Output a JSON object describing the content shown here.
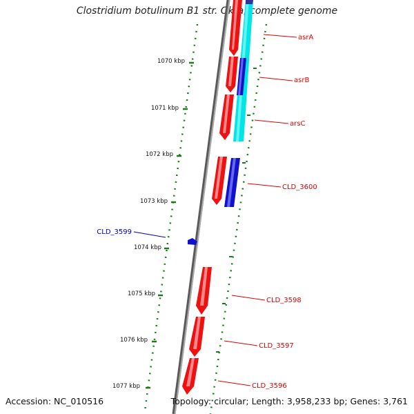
{
  "title": "Clostridium botulinum B1 str. Okra, complete genome",
  "footer": {
    "accession": "Accession: NC_010516",
    "summary": "Topology: circular; Length: 3,958,233 bp; Genes: 3,761"
  },
  "scale_ticks": [
    "1070 kbp",
    "1071 kbp",
    "1072 kbp",
    "1073 kbp",
    "1074 kbp",
    "1075 kbp",
    "1076 kbp",
    "1077 kbp"
  ],
  "genes": [
    {
      "label": "asrA",
      "color": "#dd0000"
    },
    {
      "label": "asrB",
      "color": "#dd0000"
    },
    {
      "label": "arsC",
      "color": "#dd0000"
    },
    {
      "label": "CLD_3600",
      "color": "#dd0000"
    },
    {
      "label": "CLD_3599",
      "color": "#0000aa"
    },
    {
      "label": "CLD_3598",
      "color": "#dd0000"
    },
    {
      "label": "CLD_3597",
      "color": "#dd0000"
    },
    {
      "label": "CLD_3596",
      "color": "#dd0000"
    }
  ],
  "colors": {
    "backbone": "#808080",
    "forward_strand_gene": "#ee1111",
    "reverse_strand_gene": "#1111cc",
    "cds_feature": "#00e5e5",
    "gc_dots": "#1a7a1a",
    "label_line_red": "#dd0000",
    "label_line_blue": "#0000aa"
  }
}
